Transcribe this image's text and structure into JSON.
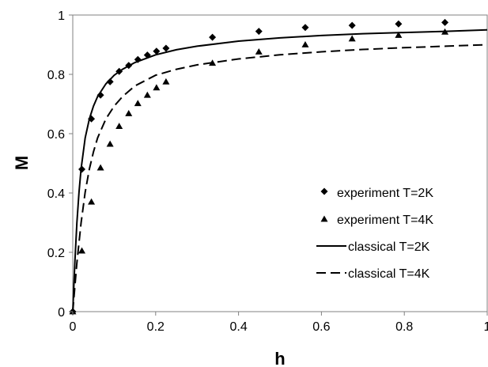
{
  "chart_data": {
    "type": "scatter",
    "title": "",
    "xlabel": "h",
    "ylabel": "M",
    "xlim": [
      0,
      1
    ],
    "ylim": [
      0,
      1
    ],
    "x_ticks": [
      "0",
      "0.2",
      "0.4",
      "0.6",
      "0.8",
      "1"
    ],
    "y_ticks": [
      "0",
      "0.2",
      "0.4",
      "0.6",
      "0.8",
      "1"
    ],
    "grid": false,
    "legend_position": "right",
    "series": [
      {
        "name": "experiment T=2K",
        "kind": "markers",
        "marker": "diamond",
        "x": [
          0,
          0.022,
          0.045,
          0.067,
          0.09,
          0.112,
          0.135,
          0.157,
          0.18,
          0.202,
          0.225,
          0.337,
          0.449,
          0.561,
          0.674,
          0.786,
          0.898
        ],
        "y": [
          0,
          0.48,
          0.65,
          0.73,
          0.775,
          0.81,
          0.83,
          0.85,
          0.865,
          0.878,
          0.888,
          0.925,
          0.945,
          0.958,
          0.965,
          0.97,
          0.975
        ]
      },
      {
        "name": "experiment T=4K",
        "kind": "markers",
        "marker": "triangle",
        "x": [
          0,
          0.022,
          0.045,
          0.067,
          0.09,
          0.112,
          0.135,
          0.157,
          0.18,
          0.202,
          0.225,
          0.337,
          0.449,
          0.561,
          0.674,
          0.786,
          0.898
        ],
        "y": [
          0,
          0.205,
          0.37,
          0.485,
          0.565,
          0.625,
          0.668,
          0.702,
          0.73,
          0.755,
          0.775,
          0.838,
          0.876,
          0.9,
          0.92,
          0.932,
          0.943
        ]
      },
      {
        "name": "classical T=2K",
        "kind": "line",
        "dash": "solid",
        "x": [
          0,
          0.005,
          0.01,
          0.015,
          0.02,
          0.03,
          0.04,
          0.05,
          0.06,
          0.08,
          0.1,
          0.12,
          0.15,
          0.2,
          0.25,
          0.3,
          0.4,
          0.5,
          0.6,
          0.7,
          0.8,
          0.9,
          1.0
        ],
        "y": [
          0,
          0.164,
          0.299,
          0.403,
          0.481,
          0.586,
          0.65,
          0.693,
          0.725,
          0.768,
          0.797,
          0.817,
          0.84,
          0.866,
          0.883,
          0.895,
          0.912,
          0.923,
          0.931,
          0.937,
          0.941,
          0.945,
          0.95
        ]
      },
      {
        "name": "classical T=4K",
        "kind": "line",
        "dash": "dashed",
        "x": [
          0,
          0.005,
          0.01,
          0.02,
          0.03,
          0.04,
          0.05,
          0.06,
          0.08,
          0.1,
          0.12,
          0.15,
          0.2,
          0.25,
          0.3,
          0.4,
          0.5,
          0.6,
          0.7,
          0.8,
          0.9,
          1.0
        ],
        "y": [
          0,
          0.083,
          0.164,
          0.299,
          0.403,
          0.481,
          0.539,
          0.586,
          0.65,
          0.693,
          0.725,
          0.761,
          0.797,
          0.817,
          0.832,
          0.852,
          0.866,
          0.876,
          0.884,
          0.89,
          0.895,
          0.9
        ]
      }
    ]
  }
}
